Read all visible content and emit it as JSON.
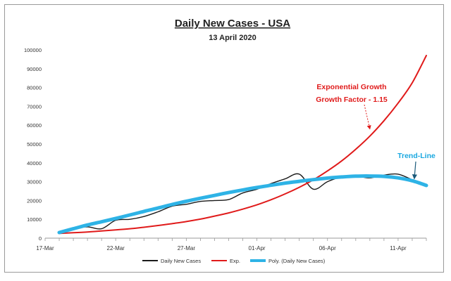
{
  "chart_data": {
    "type": "line",
    "title": "Daily New Cases - USA",
    "subtitle": "13 April 2020",
    "xlabel": "",
    "ylabel": "",
    "ylim": [
      0,
      100000
    ],
    "yticks": [
      0,
      10000,
      20000,
      30000,
      40000,
      50000,
      60000,
      70000,
      80000,
      90000,
      100000
    ],
    "xlim": [
      "2020-03-17",
      "2020-04-13"
    ],
    "xticks": [
      {
        "date": "2020-03-17",
        "label": "17-Mar"
      },
      {
        "date": "2020-03-22",
        "label": "22-Mar"
      },
      {
        "date": "2020-03-27",
        "label": "27-Mar"
      },
      {
        "date": "2020-04-01",
        "label": "01-Apr"
      },
      {
        "date": "2020-04-06",
        "label": "06-Apr"
      },
      {
        "date": "2020-04-11",
        "label": "11-Apr"
      }
    ],
    "grid": false,
    "legend_position": "bottom",
    "series": [
      {
        "name": "Daily New Cases",
        "color": "#1a1a1a",
        "x": [
          "2020-03-18",
          "2020-03-19",
          "2020-03-20",
          "2020-03-21",
          "2020-03-22",
          "2020-03-23",
          "2020-03-24",
          "2020-03-25",
          "2020-03-26",
          "2020-03-27",
          "2020-03-28",
          "2020-03-29",
          "2020-03-30",
          "2020-03-31",
          "2020-04-01",
          "2020-04-02",
          "2020-04-03",
          "2020-04-04",
          "2020-04-05",
          "2020-04-06",
          "2020-04-07",
          "2020-04-08",
          "2020-04-09",
          "2020-04-10",
          "2020-04-11",
          "2020-04-12",
          "2020-04-13"
        ],
        "y": [
          3000,
          5000,
          6000,
          5000,
          9500,
          10000,
          11500,
          14000,
          17000,
          18000,
          19500,
          20000,
          20500,
          24000,
          26000,
          29000,
          31500,
          34000,
          26000,
          30000,
          32500,
          33000,
          32000,
          33500,
          34000,
          31000,
          28000
        ]
      },
      {
        "name": "Exp.",
        "color": "#e01a1a",
        "x": [
          "2020-03-18",
          "2020-03-19",
          "2020-03-20",
          "2020-03-21",
          "2020-03-22",
          "2020-03-23",
          "2020-03-24",
          "2020-03-25",
          "2020-03-26",
          "2020-03-27",
          "2020-03-28",
          "2020-03-29",
          "2020-03-30",
          "2020-03-31",
          "2020-04-01",
          "2020-04-02",
          "2020-04-03",
          "2020-04-04",
          "2020-04-05",
          "2020-04-06",
          "2020-04-07",
          "2020-04-08",
          "2020-04-09",
          "2020-04-10",
          "2020-04-11",
          "2020-04-12",
          "2020-04-13"
        ],
        "y": [
          2500,
          2900,
          3300,
          3800,
          4400,
          5000,
          5800,
          6700,
          7700,
          8800,
          10100,
          11700,
          13400,
          15400,
          17700,
          20400,
          23500,
          27000,
          31000,
          35700,
          41000,
          47200,
          54200,
          62400,
          71700,
          82500,
          97000
        ]
      },
      {
        "name": "Poly. (Daily New Cases)",
        "color": "#2eb3e6",
        "x": [
          "2020-03-18",
          "2020-03-19",
          "2020-03-20",
          "2020-03-21",
          "2020-03-22",
          "2020-03-23",
          "2020-03-24",
          "2020-03-25",
          "2020-03-26",
          "2020-03-27",
          "2020-03-28",
          "2020-03-29",
          "2020-03-30",
          "2020-03-31",
          "2020-04-01",
          "2020-04-02",
          "2020-04-03",
          "2020-04-04",
          "2020-04-05",
          "2020-04-06",
          "2020-04-07",
          "2020-04-08",
          "2020-04-09",
          "2020-04-10",
          "2020-04-11",
          "2020-04-12",
          "2020-04-13"
        ],
        "y": [
          3000,
          5000,
          7000,
          8700,
          10500,
          12300,
          14200,
          16000,
          17900,
          19600,
          21200,
          22700,
          24200,
          25600,
          26900,
          28100,
          29200,
          30200,
          31100,
          31900,
          32500,
          32900,
          33000,
          32800,
          32000,
          30500,
          28000
        ]
      }
    ],
    "annotations": [
      {
        "line1": "Exponential Growth",
        "line2": "Growth Factor - 1.15",
        "color": "#e01a1a",
        "arrow_to": {
          "x": "2020-04-09",
          "y": 58000
        }
      },
      {
        "line1": "Trend-Line",
        "line2": "",
        "color": "#1aa8e0",
        "arrow_to": {
          "x": "2020-04-12",
          "y": 30500
        }
      }
    ]
  }
}
